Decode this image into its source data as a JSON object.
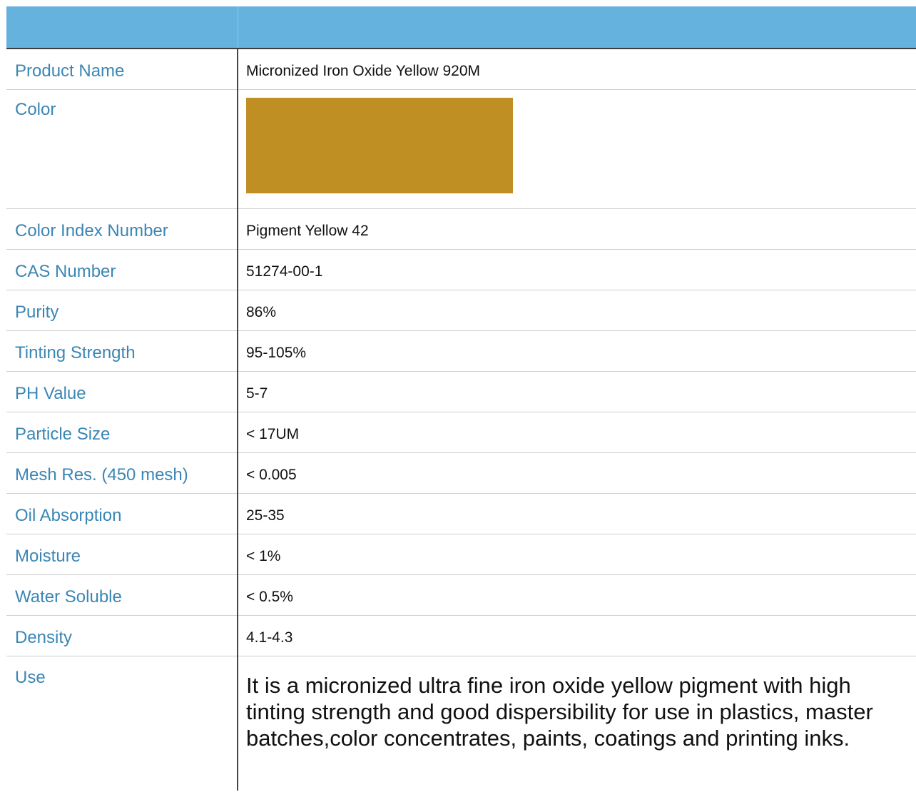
{
  "table": {
    "header": {
      "label": "",
      "value": ""
    },
    "rows": [
      {
        "label": "Product Name",
        "value": "Micronized Iron Oxide Yellow 920M"
      },
      {
        "label": "Color",
        "swatch_color": "#bf8f24"
      },
      {
        "label": "Color Index Number",
        "value": "Pigment Yellow 42"
      },
      {
        "label": "CAS Number",
        "value": "51274-00-1"
      },
      {
        "label": "Purity",
        "value": "86%"
      },
      {
        "label": "Tinting Strength",
        "value": "95-105%"
      },
      {
        "label": "PH Value",
        "value": "5-7"
      },
      {
        "label": "Particle Size",
        "value": "< 17UM"
      },
      {
        "label": "Mesh Res. (450 mesh)",
        "value": "< 0.005"
      },
      {
        "label": "Oil Absorption",
        "value": "25-35"
      },
      {
        "label": "Moisture",
        "value": "< 1%"
      },
      {
        "label": "Water Soluble",
        "value": "< 0.5%"
      },
      {
        "label": "Density",
        "value": "4.1-4.3"
      },
      {
        "label": "Use",
        "value": "It is a micronized ultra fine iron oxide yellow pigment with high tinting strength and good dispersibility for use in plastics, master batches,color concentrates, paints, coatings and printing inks."
      }
    ]
  },
  "colors": {
    "header_background": "#65b2de",
    "label_text": "#3a86b4"
  }
}
